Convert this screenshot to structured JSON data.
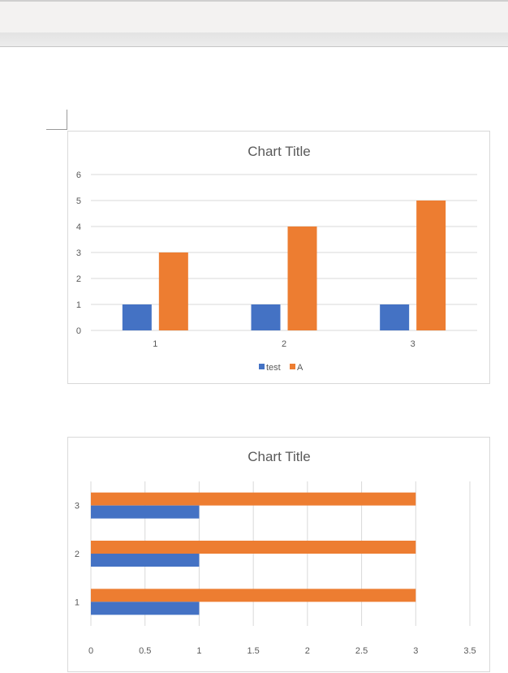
{
  "chart_data": [
    {
      "type": "bar",
      "title": "Chart Title",
      "categories": [
        "1",
        "2",
        "3"
      ],
      "series": [
        {
          "name": "test",
          "values": [
            1,
            1,
            1
          ],
          "color": "#4472c4"
        },
        {
          "name": "A",
          "values": [
            3,
            4,
            5
          ],
          "color": "#ed7d31"
        }
      ],
      "ylim": [
        0,
        6
      ],
      "yticks": [
        "0",
        "1",
        "2",
        "3",
        "4",
        "5",
        "6"
      ],
      "grid": true,
      "legend": "bottom"
    },
    {
      "type": "bar",
      "orientation": "horizontal",
      "title": "Chart Title",
      "categories": [
        "1",
        "2",
        "3"
      ],
      "series": [
        {
          "values": [
            1,
            1,
            1
          ],
          "color": "#4472c4"
        },
        {
          "values": [
            3,
            3,
            3
          ],
          "color": "#ed7d31"
        }
      ],
      "xlim": [
        0,
        3.5
      ],
      "xticks": [
        "0",
        "0.5",
        "1",
        "1.5",
        "2",
        "2.5",
        "3",
        "3.5"
      ],
      "grid": true
    }
  ]
}
